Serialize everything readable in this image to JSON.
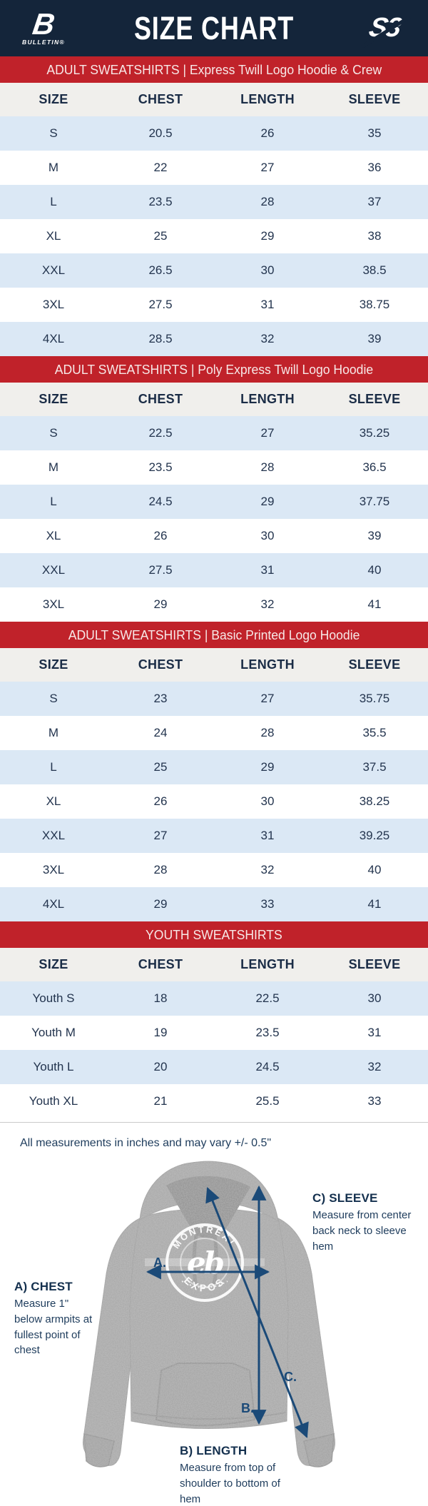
{
  "header": {
    "title": "SIZE CHART",
    "brand_left_mark": "B",
    "brand_left_word": "BULLETIN®",
    "brand_right_mark": "S3"
  },
  "colors": {
    "navy": "#14253a",
    "banner_red": "#c0222a",
    "row_blue": "#dbe8f5",
    "header_row_bg": "#f0efec",
    "table_text_navy": "#23344e",
    "arrow_navy": "#1b4a78",
    "hoodie_gray": "#a6a6a6"
  },
  "sections": [
    {
      "banner": "ADULT SWEATSHIRTS | Express Twill Logo Hoodie & Crew",
      "columns": [
        "SIZE",
        "CHEST",
        "LENGTH",
        "SLEEVE"
      ],
      "rows": [
        [
          "S",
          "20.5",
          "26",
          "35"
        ],
        [
          "M",
          "22",
          "27",
          "36"
        ],
        [
          "L",
          "23.5",
          "28",
          "37"
        ],
        [
          "XL",
          "25",
          "29",
          "38"
        ],
        [
          "XXL",
          "26.5",
          "30",
          "38.5"
        ],
        [
          "3XL",
          "27.5",
          "31",
          "38.75"
        ],
        [
          "4XL",
          "28.5",
          "32",
          "39"
        ]
      ]
    },
    {
      "banner": "ADULT SWEATSHIRTS | Poly Express Twill Logo Hoodie",
      "columns": [
        "SIZE",
        "CHEST",
        "LENGTH",
        "SLEEVE"
      ],
      "rows": [
        [
          "S",
          "22.5",
          "27",
          "35.25"
        ],
        [
          "M",
          "23.5",
          "28",
          "36.5"
        ],
        [
          "L",
          "24.5",
          "29",
          "37.75"
        ],
        [
          "XL",
          "26",
          "30",
          "39"
        ],
        [
          "XXL",
          "27.5",
          "31",
          "40"
        ],
        [
          "3XL",
          "29",
          "32",
          "41"
        ]
      ]
    },
    {
      "banner": "ADULT SWEATSHIRTS | Basic Printed Logo Hoodie",
      "columns": [
        "SIZE",
        "CHEST",
        "LENGTH",
        "SLEEVE"
      ],
      "rows": [
        [
          "S",
          "23",
          "27",
          "35.75"
        ],
        [
          "M",
          "24",
          "28",
          "35.5"
        ],
        [
          "L",
          "25",
          "29",
          "37.5"
        ],
        [
          "XL",
          "26",
          "30",
          "38.25"
        ],
        [
          "XXL",
          "27",
          "31",
          "39.25"
        ],
        [
          "3XL",
          "28",
          "32",
          "40"
        ],
        [
          "4XL",
          "29",
          "33",
          "41"
        ]
      ]
    },
    {
      "banner": "YOUTH SWEATSHIRTS",
      "columns": [
        "SIZE",
        "CHEST",
        "LENGTH",
        "SLEEVE"
      ],
      "rows": [
        [
          "Youth S",
          "18",
          "22.5",
          "30"
        ],
        [
          "Youth M",
          "19",
          "23.5",
          "31"
        ],
        [
          "Youth L",
          "20",
          "24.5",
          "32"
        ],
        [
          "Youth XL",
          "21",
          "25.5",
          "33"
        ]
      ]
    }
  ],
  "note": "All measurements in inches and may vary +/- 0.5\"",
  "diagram": {
    "logo": {
      "top": "MONTRÉAL",
      "bottom": "EXPOS",
      "mark": "eb"
    },
    "markers": {
      "a": "A.",
      "b": "B.",
      "c": "C."
    },
    "labels": {
      "chest": {
        "title": "A) CHEST",
        "desc": "Measure 1\" below armpits at fullest point of chest"
      },
      "length": {
        "title": "B) LENGTH",
        "desc": "Measure from top of shoulder to bottom of hem"
      },
      "sleeve": {
        "title": "C) SLEEVE",
        "desc": "Measure from center back neck to sleeve hem"
      }
    }
  }
}
